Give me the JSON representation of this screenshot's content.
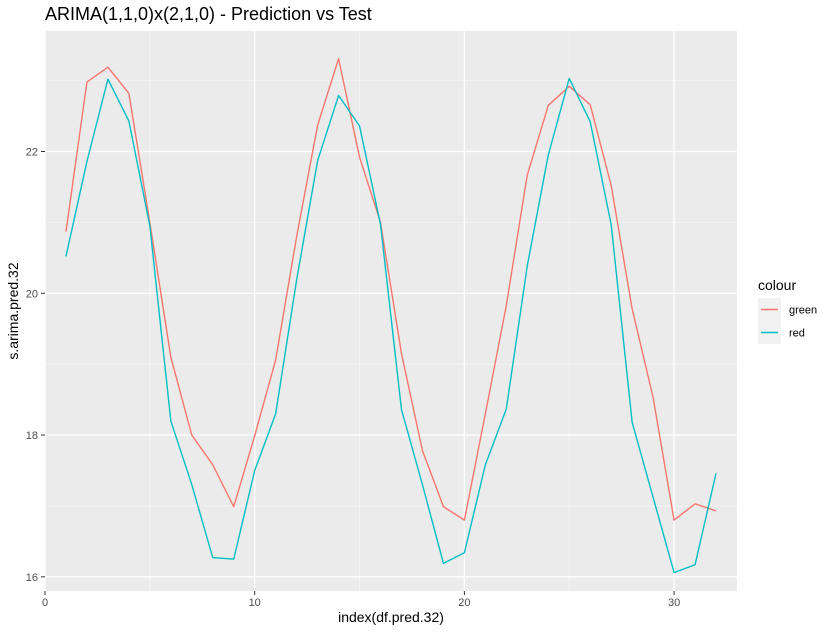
{
  "chart_data": {
    "type": "line",
    "title": "ARIMA(1,1,0)x(2,1,0) - Prediction vs Test",
    "xlabel": "index(df.pred.32)",
    "ylabel": "s.arima.pred.32",
    "xlim": [
      0,
      33
    ],
    "ylim": [
      15.8,
      23.7
    ],
    "x_ticks": [
      0,
      10,
      20,
      30
    ],
    "y_ticks": [
      16,
      18,
      20,
      22
    ],
    "x_tick_labels": [
      "0",
      "10",
      "20",
      "30"
    ],
    "y_tick_labels": [
      "16",
      "18",
      "20",
      "22"
    ],
    "grid": true,
    "legend": {
      "title": "colour",
      "position": "right"
    },
    "x": [
      1,
      2,
      3,
      4,
      5,
      6,
      7,
      8,
      9,
      10,
      11,
      12,
      13,
      14,
      15,
      16,
      17,
      18,
      19,
      20,
      21,
      22,
      23,
      24,
      25,
      26,
      27,
      28,
      29,
      30,
      31,
      32
    ],
    "series": [
      {
        "name": "green",
        "color": "#F8766D",
        "values": [
          20.87,
          22.98,
          23.19,
          22.82,
          21.0,
          19.1,
          18.0,
          17.58,
          16.99,
          17.99,
          19.06,
          20.8,
          22.37,
          23.31,
          21.92,
          21.0,
          19.15,
          17.78,
          16.99,
          16.8,
          18.3,
          19.83,
          21.67,
          22.65,
          22.92,
          22.66,
          21.52,
          19.78,
          18.53,
          16.8,
          17.03,
          16.93
        ]
      },
      {
        "name": "red",
        "color": "#00BFC4",
        "values": [
          20.52,
          21.86,
          23.02,
          22.43,
          20.95,
          18.2,
          17.3,
          16.27,
          16.25,
          17.5,
          18.3,
          20.19,
          21.87,
          22.79,
          22.36,
          20.97,
          18.36,
          17.3,
          16.19,
          16.34,
          17.58,
          18.37,
          20.39,
          21.95,
          23.03,
          22.42,
          20.97,
          18.18,
          17.12,
          16.06,
          16.17,
          17.46
        ]
      }
    ]
  }
}
